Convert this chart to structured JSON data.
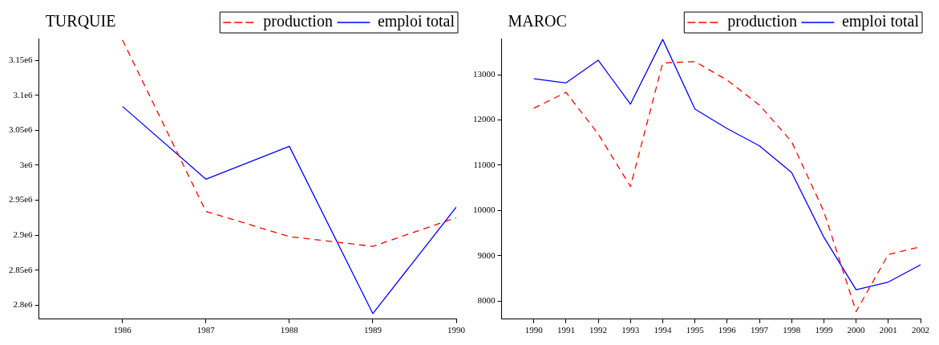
{
  "chart_data": [
    {
      "type": "line",
      "title": "TURQUIE",
      "x": [
        1986,
        1987,
        1988,
        1989,
        1990
      ],
      "xlim": [
        1985,
        1990
      ],
      "xticks": [
        1986,
        1987,
        1988,
        1989,
        1990
      ],
      "ylim": [
        2780000,
        3181000
      ],
      "yticks": [
        {
          "value": 2800000,
          "label": "2.8e6"
        },
        {
          "value": 2850000,
          "label": "2.85e6"
        },
        {
          "value": 2900000,
          "label": "2.9e6"
        },
        {
          "value": 2950000,
          "label": "2.95e6"
        },
        {
          "value": 3000000,
          "label": "3e6"
        },
        {
          "value": 3050000,
          "label": "3.05e6"
        },
        {
          "value": 3100000,
          "label": "3.1e6"
        },
        {
          "value": 3150000,
          "label": "3.15e6"
        }
      ],
      "series": [
        {
          "name": "production",
          "color": "#ff0000",
          "line_style": "dashed",
          "values": [
            3179000,
            2934000,
            2898000,
            2884000,
            2925000
          ]
        },
        {
          "name": "emploi total",
          "color": "#0000ff",
          "line_style": "solid",
          "values": [
            3084000,
            2980000,
            3027000,
            2788000,
            2940000
          ]
        }
      ],
      "legend": "top right",
      "marker": "none",
      "grid": false
    },
    {
      "type": "line",
      "title": "MAROC",
      "x": [
        1990,
        1991,
        1992,
        1993,
        1994,
        1995,
        1996,
        1997,
        1998,
        1999,
        2000,
        2001,
        2002
      ],
      "xlim": [
        1989,
        2002
      ],
      "xticks": [
        1990,
        1991,
        1992,
        1993,
        1994,
        1995,
        1996,
        1997,
        1998,
        1999,
        2000,
        2001,
        2002
      ],
      "ylim": [
        7600,
        13800
      ],
      "yticks": [
        8000,
        9000,
        10000,
        11000,
        12000,
        13000
      ],
      "series": [
        {
          "name": "production",
          "color": "#ff0000",
          "line_style": "dashed",
          "values": [
            12260,
            12610,
            11690,
            10530,
            13260,
            13290,
            12880,
            12330,
            11520,
            9980,
            7770,
            9030,
            9200
          ]
        },
        {
          "name": "emploi total",
          "color": "#0000ff",
          "line_style": "solid",
          "values": [
            12910,
            12820,
            13320,
            12350,
            13780,
            12240,
            11810,
            11430,
            10840,
            9410,
            8250,
            8420,
            8800
          ]
        }
      ],
      "legend": "top right",
      "marker": "none",
      "grid": false
    }
  ]
}
